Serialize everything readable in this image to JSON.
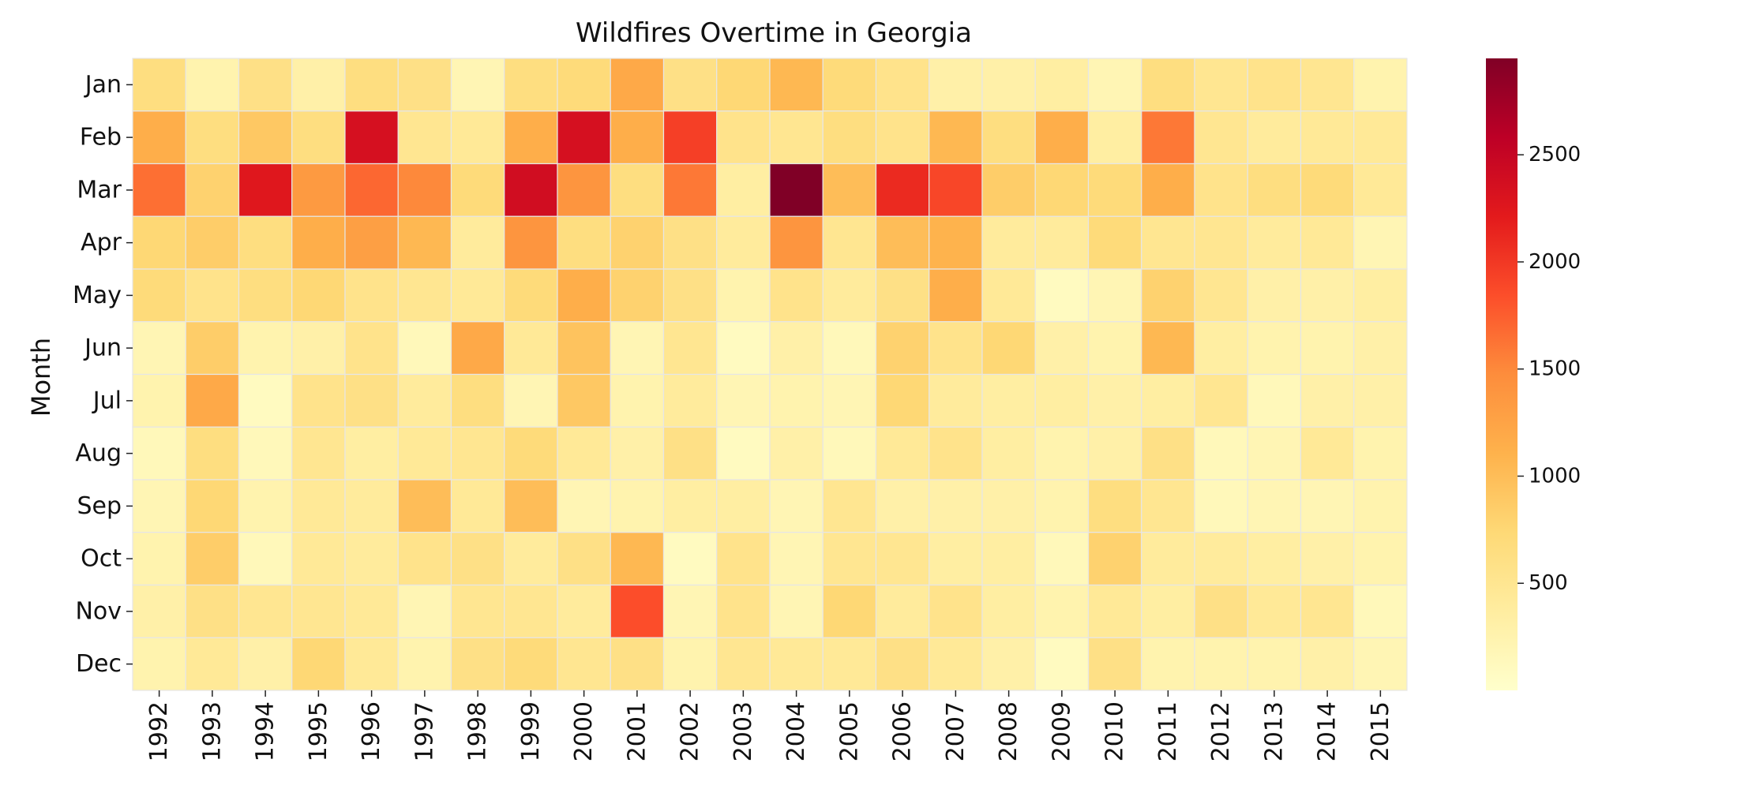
{
  "chart_data": {
    "type": "heatmap",
    "title": "Wildfires Overtime in Georgia",
    "xlabel": "",
    "ylabel": "Month",
    "x": [
      "1992",
      "1993",
      "1994",
      "1995",
      "1996",
      "1997",
      "1998",
      "1999",
      "2000",
      "2001",
      "2002",
      "2003",
      "2004",
      "2005",
      "2006",
      "2007",
      "2008",
      "2009",
      "2010",
      "2011",
      "2012",
      "2013",
      "2014",
      "2015"
    ],
    "y": [
      "Jan",
      "Feb",
      "Mar",
      "Apr",
      "May",
      "Jun",
      "Jul",
      "Aug",
      "Sep",
      "Oct",
      "Nov",
      "Dec"
    ],
    "values": [
      [
        650,
        250,
        600,
        300,
        650,
        600,
        200,
        650,
        700,
        1200,
        600,
        750,
        1050,
        700,
        550,
        300,
        300,
        350,
        200,
        650,
        500,
        550,
        500,
        250
      ],
      [
        1150,
        650,
        900,
        650,
        2350,
        500,
        450,
        1150,
        2350,
        1150,
        1950,
        550,
        500,
        650,
        550,
        1050,
        650,
        1150,
        350,
        1600,
        500,
        400,
        450,
        450
      ],
      [
        1650,
        800,
        2250,
        1350,
        1700,
        1500,
        700,
        2400,
        1400,
        650,
        1600,
        350,
        2950,
        1000,
        2100,
        1900,
        850,
        750,
        700,
        1150,
        550,
        650,
        700,
        450
      ],
      [
        750,
        850,
        650,
        1150,
        1300,
        1050,
        400,
        1400,
        650,
        800,
        600,
        400,
        1400,
        500,
        1000,
        1100,
        400,
        400,
        700,
        500,
        500,
        400,
        450,
        200
      ],
      [
        700,
        550,
        650,
        750,
        550,
        500,
        450,
        700,
        1150,
        800,
        600,
        250,
        550,
        400,
        600,
        1150,
        450,
        100,
        200,
        800,
        500,
        300,
        300,
        350
      ],
      [
        200,
        850,
        250,
        300,
        550,
        150,
        1200,
        450,
        950,
        200,
        500,
        100,
        300,
        150,
        800,
        550,
        750,
        300,
        250,
        1050,
        350,
        250,
        250,
        300
      ],
      [
        250,
        1200,
        100,
        550,
        600,
        400,
        650,
        200,
        900,
        250,
        400,
        200,
        250,
        200,
        750,
        400,
        350,
        350,
        300,
        350,
        500,
        150,
        300,
        300
      ],
      [
        150,
        650,
        150,
        500,
        350,
        450,
        500,
        700,
        450,
        300,
        600,
        100,
        300,
        150,
        450,
        550,
        350,
        250,
        300,
        600,
        150,
        200,
        450,
        250
      ],
      [
        200,
        750,
        250,
        450,
        400,
        1000,
        450,
        1000,
        200,
        250,
        350,
        350,
        200,
        500,
        300,
        300,
        300,
        250,
        650,
        500,
        150,
        200,
        200,
        250
      ],
      [
        250,
        850,
        150,
        450,
        400,
        550,
        600,
        400,
        600,
        1050,
        100,
        550,
        200,
        500,
        500,
        350,
        350,
        150,
        800,
        400,
        400,
        350,
        300,
        250
      ],
      [
        300,
        600,
        500,
        500,
        450,
        200,
        500,
        500,
        400,
        1850,
        200,
        550,
        200,
        750,
        400,
        550,
        350,
        250,
        450,
        350,
        600,
        450,
        500,
        150
      ],
      [
        250,
        450,
        300,
        750,
        450,
        250,
        600,
        700,
        500,
        600,
        250,
        500,
        450,
        450,
        600,
        450,
        300,
        100,
        600,
        250,
        250,
        250,
        300,
        200
      ]
    ],
    "colorbar": {
      "cmap": "YlOrRd",
      "range": [
        0,
        2950
      ],
      "ticks": [
        500,
        1000,
        1500,
        2000,
        2500
      ],
      "tick_labels": [
        "500",
        "1000",
        "1500",
        "2000",
        "2500"
      ]
    },
    "grid": false
  }
}
